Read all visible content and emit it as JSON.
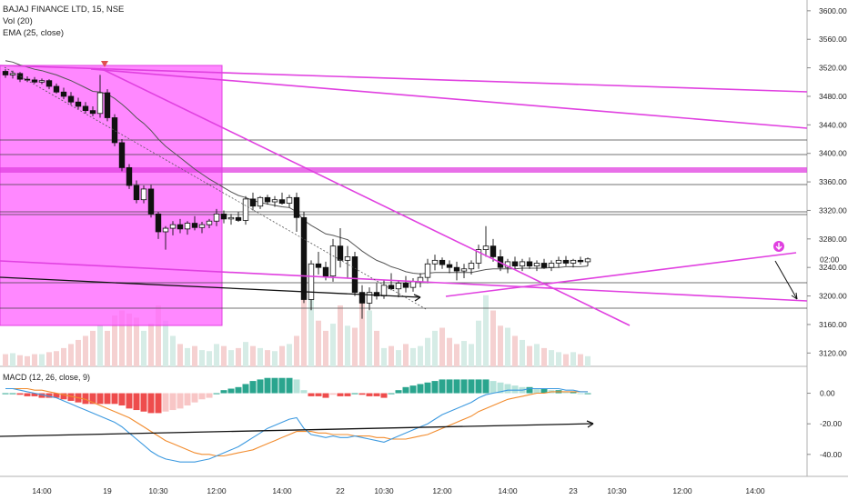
{
  "legend": {
    "symbol": "BAJAJ FINANCE LTD, 15, NSE",
    "vol": "Vol (20)",
    "ema": "EMA (25, close)",
    "macd": "MACD (12, 26, close, 9)"
  },
  "price_label": "02:00",
  "colors": {
    "up_body": "#ffffff",
    "down_body": "#111111",
    "candle_outline": "#111111",
    "magenta": "#e040e0",
    "box_fill": "#ff66ff",
    "ema": "#555555",
    "macd_line": "#3d9ae0",
    "signal_line": "#f28c2e",
    "hist_up_dark": "#2aa58e",
    "hist_up_light": "#b6e3da",
    "hist_down_dark": "#ee4c4c",
    "hist_down_light": "#f8c6c6",
    "vol_up": "#d6ece6",
    "vol_down": "#f5d1d1",
    "grid": "#222222",
    "arrow": "#111111",
    "marker_red": "#e05050"
  },
  "chart_data": {
    "type": "candlestick",
    "price_axis": {
      "range": [
        3100,
        3610
      ],
      "ticks": [
        3600,
        3560,
        3520,
        3480,
        3440,
        3400,
        3360,
        3320,
        3280,
        3240,
        3200,
        3160,
        3120
      ],
      "tick_labels": [
        "3600.00",
        "3560.00",
        "3520.00",
        "3480.00",
        "3440.00",
        "3400.00",
        "3360.00",
        "3320.00",
        "3280.00",
        "3240.00",
        "3200.00",
        "3160.00",
        "3120.00"
      ]
    },
    "macd_axis": {
      "range": [
        -52,
        14
      ],
      "ticks": [
        0,
        -20,
        -40
      ],
      "tick_labels": [
        "0.00",
        "-20.00",
        "-40.00"
      ]
    },
    "time_labels": [
      "14:00",
      "19",
      "10:30",
      "12:00",
      "14:00",
      "22",
      "10:30",
      "12:00",
      "14:00",
      "23",
      "10:30",
      "12:00",
      "14:00"
    ],
    "time_label_index": [
      5,
      14,
      21,
      29,
      38,
      46,
      52,
      60,
      69,
      78,
      84,
      93,
      103
    ],
    "candles": [
      [
        3515,
        3518,
        3506,
        3510
      ],
      [
        3510,
        3516,
        3505,
        3512
      ],
      [
        3512,
        3514,
        3500,
        3504
      ],
      [
        3504,
        3508,
        3500,
        3503
      ],
      [
        3503,
        3507,
        3498,
        3500
      ],
      [
        3500,
        3505,
        3497,
        3502
      ],
      [
        3502,
        3504,
        3490,
        3494
      ],
      [
        3494,
        3498,
        3484,
        3486
      ],
      [
        3486,
        3492,
        3476,
        3480
      ],
      [
        3480,
        3486,
        3468,
        3472
      ],
      [
        3472,
        3478,
        3462,
        3466
      ],
      [
        3466,
        3472,
        3456,
        3460
      ],
      [
        3460,
        3466,
        3452,
        3456
      ],
      [
        3456,
        3510,
        3450,
        3485
      ],
      [
        3485,
        3490,
        3445,
        3450
      ],
      [
        3450,
        3455,
        3410,
        3415
      ],
      [
        3415,
        3420,
        3375,
        3380
      ],
      [
        3380,
        3385,
        3350,
        3355
      ],
      [
        3355,
        3362,
        3330,
        3335
      ],
      [
        3335,
        3355,
        3330,
        3350
      ],
      [
        3350,
        3356,
        3310,
        3315
      ],
      [
        3315,
        3318,
        3280,
        3290
      ],
      [
        3290,
        3298,
        3265,
        3295
      ],
      [
        3295,
        3305,
        3285,
        3300
      ],
      [
        3300,
        3308,
        3288,
        3294
      ],
      [
        3294,
        3305,
        3286,
        3302
      ],
      [
        3302,
        3312,
        3292,
        3296
      ],
      [
        3296,
        3304,
        3288,
        3300
      ],
      [
        3300,
        3308,
        3295,
        3305
      ],
      [
        3305,
        3322,
        3298,
        3315
      ],
      [
        3315,
        3320,
        3302,
        3308
      ],
      [
        3308,
        3315,
        3300,
        3310
      ],
      [
        3310,
        3318,
        3304,
        3306
      ],
      [
        3306,
        3340,
        3300,
        3336
      ],
      [
        3336,
        3345,
        3320,
        3326
      ],
      [
        3326,
        3340,
        3322,
        3338
      ],
      [
        3338,
        3342,
        3328,
        3332
      ],
      [
        3332,
        3340,
        3325,
        3335
      ],
      [
        3335,
        3345,
        3328,
        3330
      ],
      [
        3330,
        3342,
        3324,
        3338
      ],
      [
        3338,
        3345,
        3290,
        3310
      ],
      [
        3310,
        3318,
        3190,
        3195
      ],
      [
        3195,
        3250,
        3180,
        3245
      ],
      [
        3245,
        3262,
        3230,
        3240
      ],
      [
        3240,
        3248,
        3222,
        3228
      ],
      [
        3228,
        3280,
        3220,
        3270
      ],
      [
        3270,
        3295,
        3240,
        3250
      ],
      [
        3250,
        3270,
        3225,
        3255
      ],
      [
        3255,
        3262,
        3200,
        3205
      ],
      [
        3205,
        3215,
        3168,
        3190
      ],
      [
        3190,
        3212,
        3180,
        3205
      ],
      [
        3205,
        3218,
        3195,
        3200
      ],
      [
        3200,
        3222,
        3196,
        3215
      ],
      [
        3215,
        3232,
        3208,
        3210
      ],
      [
        3210,
        3222,
        3198,
        3218
      ],
      [
        3218,
        3228,
        3205,
        3212
      ],
      [
        3212,
        3225,
        3206,
        3220
      ],
      [
        3220,
        3232,
        3212,
        3226
      ],
      [
        3226,
        3252,
        3218,
        3245
      ],
      [
        3245,
        3258,
        3236,
        3250
      ],
      [
        3250,
        3254,
        3238,
        3244
      ],
      [
        3244,
        3250,
        3232,
        3240
      ],
      [
        3240,
        3248,
        3222,
        3235
      ],
      [
        3235,
        3245,
        3225,
        3238
      ],
      [
        3238,
        3250,
        3230,
        3246
      ],
      [
        3246,
        3272,
        3238,
        3265
      ],
      [
        3265,
        3298,
        3255,
        3270
      ],
      [
        3270,
        3280,
        3248,
        3255
      ],
      [
        3255,
        3265,
        3235,
        3240
      ],
      [
        3240,
        3252,
        3232,
        3248
      ],
      [
        3248,
        3255,
        3238,
        3242
      ],
      [
        3242,
        3252,
        3235,
        3248
      ],
      [
        3248,
        3254,
        3238,
        3242
      ],
      [
        3242,
        3250,
        3235,
        3246
      ],
      [
        3246,
        3252,
        3238,
        3240
      ],
      [
        3240,
        3250,
        3235,
        3246
      ],
      [
        3246,
        3255,
        3240,
        3250
      ],
      [
        3250,
        3256,
        3242,
        3246
      ],
      [
        3246,
        3252,
        3240,
        3250
      ],
      [
        3250,
        3255,
        3244,
        3248
      ],
      [
        3248,
        3254,
        3242,
        3252
      ]
    ],
    "ema": [
      3530,
      3528,
      3524,
      3521,
      3518,
      3516,
      3513,
      3510,
      3506,
      3502,
      3497,
      3492,
      3487,
      3486,
      3483,
      3477,
      3469,
      3460,
      3450,
      3442,
      3432,
      3420,
      3410,
      3402,
      3394,
      3386,
      3378,
      3371,
      3364,
      3358,
      3352,
      3346,
      3341,
      3338,
      3334,
      3331,
      3329,
      3327,
      3325,
      3324,
      3318,
      3306,
      3299,
      3293,
      3287,
      3285,
      3282,
      3279,
      3271,
      3263,
      3256,
      3250,
      3246,
      3241,
      3238,
      3234,
      3232,
      3231,
      3232,
      3233,
      3233,
      3233,
      3233,
      3233,
      3233,
      3235,
      3237,
      3238,
      3238,
      3238,
      3238,
      3239,
      3239,
      3239,
      3239,
      3240,
      3240,
      3241,
      3241,
      3241,
      3242
    ],
    "volume": [
      12,
      13,
      11,
      10,
      12,
      12,
      14,
      15,
      18,
      22,
      26,
      30,
      35,
      40,
      35,
      50,
      55,
      52,
      48,
      35,
      42,
      60,
      45,
      30,
      22,
      18,
      20,
      16,
      15,
      22,
      20,
      16,
      18,
      24,
      20,
      18,
      16,
      15,
      20,
      22,
      30,
      85,
      70,
      45,
      35,
      42,
      60,
      40,
      38,
      65,
      55,
      35,
      18,
      20,
      16,
      22,
      18,
      20,
      28,
      35,
      38,
      28,
      22,
      25,
      22,
      45,
      70,
      55,
      40,
      38,
      30,
      26,
      20,
      22,
      18,
      16,
      14,
      12,
      14,
      12,
      10
    ],
    "macd": {
      "macd": [
        3,
        3,
        2,
        1,
        0,
        -1,
        -2,
        -3,
        -5,
        -7,
        -9,
        -11,
        -13,
        -15,
        -17,
        -19,
        -22,
        -26,
        -30,
        -34,
        -38,
        -41,
        -43,
        -44,
        -45,
        -45,
        -45,
        -44,
        -43,
        -41,
        -39,
        -37,
        -35,
        -32,
        -29,
        -26,
        -23,
        -21,
        -19,
        -17,
        -16,
        -23,
        -27,
        -28,
        -29,
        -28,
        -29,
        -29,
        -28,
        -29,
        -30,
        -31,
        -32,
        -30,
        -28,
        -26,
        -24,
        -22,
        -20,
        -17,
        -14,
        -12,
        -10,
        -8,
        -6,
        -3,
        -1,
        0,
        1,
        2,
        2,
        2,
        3,
        3,
        3,
        3,
        3,
        2,
        2,
        1,
        1
      ],
      "signal": [
        3,
        3,
        3,
        3,
        2,
        2,
        1,
        0,
        -1,
        -2,
        -3,
        -4,
        -6,
        -8,
        -10,
        -12,
        -14,
        -16,
        -19,
        -22,
        -25,
        -28,
        -31,
        -33,
        -35,
        -37,
        -39,
        -40,
        -40,
        -41,
        -41,
        -40,
        -39,
        -38,
        -37,
        -35,
        -33,
        -31,
        -29,
        -27,
        -25,
        -25,
        -25,
        -26,
        -26,
        -27,
        -27,
        -27,
        -28,
        -28,
        -28,
        -29,
        -29,
        -30,
        -30,
        -30,
        -29,
        -28,
        -27,
        -25,
        -23,
        -21,
        -19,
        -17,
        -15,
        -12,
        -10,
        -8,
        -6,
        -4,
        -3,
        -2,
        -1,
        0,
        0,
        1,
        1,
        1,
        1,
        1,
        1
      ]
    }
  }
}
